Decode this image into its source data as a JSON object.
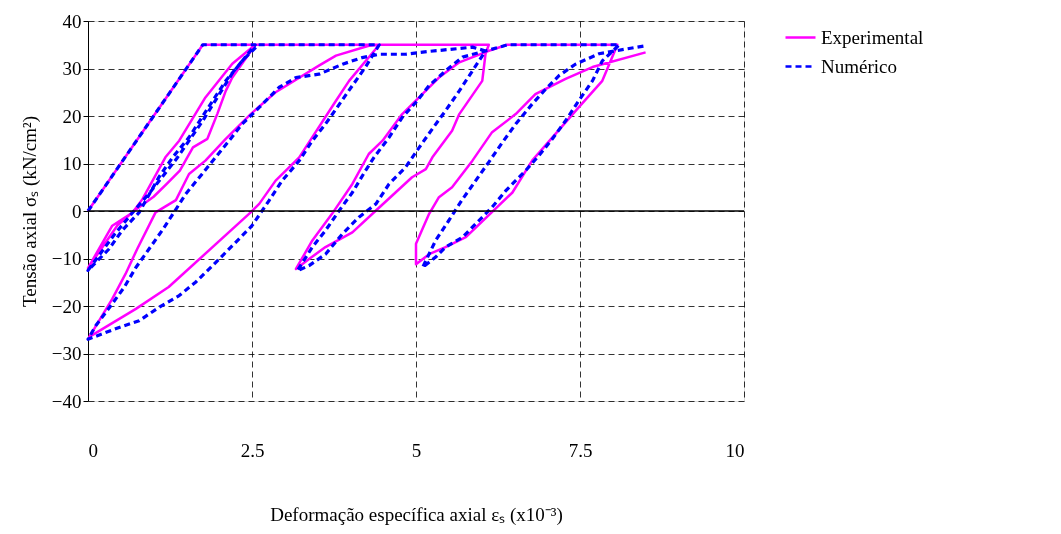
{
  "chart_data": {
    "type": "line",
    "xlabel": "Deformação específica axial εₛ (x10⁻³)",
    "ylabel": "Tensão axial σₛ (kN/cm²)",
    "xlim": [
      0,
      10
    ],
    "xticks": [
      0,
      2.5,
      5,
      7.5,
      10
    ],
    "ylim": [
      -40,
      40
    ],
    "yticks": [
      -40,
      -30,
      -20,
      -10,
      0,
      10,
      20,
      30,
      40
    ],
    "grid": true,
    "legend": "right",
    "ref_lines": [
      {
        "axis": "y",
        "value": 0,
        "color": "#000000",
        "line_style": "solid"
      }
    ],
    "series": [
      {
        "name": "Experimental",
        "color": "#ff00ff",
        "line_style": "solid",
        "x": [
          0,
          1.75,
          2.55,
          2.2,
          2.1,
          1.97,
          1.82,
          1.6,
          1.4,
          1.2,
          1.0,
          0.7,
          0.45,
          0.25,
          0,
          0.37,
          0.68,
          0.83,
          1.18,
          1.39,
          1.79,
          2.2,
          2.55,
          2.7,
          4.44,
          3.98,
          3.78,
          3.22,
          2.86,
          2.61,
          2.48,
          1.23,
          0.73,
          0.02,
          0.37,
          0.57,
          0.75,
          1.03,
          1.34,
          1.54,
          1.79,
          2.1,
          2.48,
          2.86,
          3.52,
          3.78,
          4.28,
          4.44,
          6.11,
          6.06,
          6.01,
          5.66,
          5.55,
          5.25,
          5.15,
          4.94,
          4.39,
          4.03,
          3.62,
          3.37,
          3.17,
          3.42,
          3.72,
          4.03,
          4.28,
          4.49,
          4.79,
          5.35,
          5.66,
          6.11,
          6.39,
          8.07,
          7.84,
          7.48,
          6.77,
          6.47,
          5.76,
          5.45,
          5.2,
          5.0,
          5.0,
          5.2,
          5.35,
          5.55,
          5.86,
          6.16,
          6.52,
          6.82,
          7.28,
          7.69,
          8.5
        ],
        "values": [
          0,
          35,
          35,
          28.1,
          25.3,
          20.4,
          15.2,
          13.4,
          8.5,
          5.7,
          3,
          0,
          -3,
          -7,
          -12,
          -3.1,
          -0.3,
          2.5,
          11.3,
          14.8,
          23.9,
          31,
          35,
          35,
          35,
          27.4,
          23.2,
          11.3,
          6.4,
          1.5,
          -0.3,
          -16,
          -20.6,
          -26.5,
          -18.5,
          -13.3,
          -8,
          -0.3,
          2.3,
          7.8,
          10.6,
          15.2,
          20.4,
          25,
          30.6,
          32.7,
          34.8,
          35,
          35,
          33.1,
          27.4,
          20.4,
          16.9,
          11.3,
          8.8,
          7.1,
          0.1,
          -4.5,
          -7.6,
          -10.1,
          -12.2,
          -6.2,
          -0.6,
          5.7,
          12,
          14.8,
          20.4,
          28.1,
          31.3,
          33.7,
          35,
          35,
          27.4,
          21.8,
          10.6,
          3.9,
          -5.5,
          -7.6,
          -9.1,
          -11.2,
          -6.9,
          -0.6,
          2.9,
          5,
          10.6,
          16.6,
          20.4,
          24.6,
          27.8,
          30.3,
          33.4
        ]
      },
      {
        "name": "Numérico",
        "color": "#0000ff",
        "line_style": "dashed",
        "x": [
          0,
          1.75,
          2.55,
          2.2,
          1.75,
          1.35,
          0.95,
          0.7,
          0.4,
          0,
          0.32,
          0.52,
          0.78,
          1.08,
          1.29,
          1.54,
          1.9,
          2.1,
          2.35,
          2.6,
          2.8,
          4.44,
          4.23,
          4.03,
          3.62,
          3.42,
          3.22,
          2.96,
          2.76,
          2.5,
          1.9,
          1.64,
          1.39,
          1.08,
          0.78,
          0.42,
          0,
          0.12,
          0.35,
          0.55,
          0.73,
          0.93,
          1.13,
          1.31,
          1.49,
          1.74,
          2.15,
          2.35,
          2.61,
          2.91,
          3.17,
          3.52,
          3.88,
          4.18,
          4.44,
          4.84,
          5.2,
          5.5,
          5.86,
          6.06,
          5.86,
          5.66,
          5.45,
          5.25,
          5.05,
          4.84,
          4.59,
          4.39,
          4.13,
          3.88,
          3.62,
          3.37,
          3.19,
          3.42,
          3.62,
          3.83,
          4.03,
          4.23,
          4.36,
          4.59,
          4.79,
          5.0,
          5.2,
          5.45,
          5.71,
          6.06,
          6.4,
          8.1,
          7.84,
          7.69,
          7.48,
          7.28,
          7.08,
          6.87,
          6.67,
          6.37,
          6.16,
          5.96,
          5.71,
          5.45,
          5.3,
          5.1,
          5.3,
          5.5,
          5.71,
          5.91,
          6.11,
          6.32,
          6.52,
          6.77,
          6.98,
          7.18,
          7.43,
          7.79,
          8.2,
          8.5
        ],
        "values": [
          0,
          35,
          35,
          29,
          19,
          11,
          4,
          0,
          -5,
          -12.5,
          -8,
          -4.1,
          -0.3,
          7.1,
          11.3,
          15.5,
          23.2,
          27.4,
          31.6,
          35,
          35,
          35,
          30.3,
          26.4,
          18.3,
          14.8,
          10.6,
          6.4,
          2.2,
          -3.1,
          -11.5,
          -15,
          -17.8,
          -20.3,
          -23.1,
          -24.8,
          -27,
          -24.1,
          -19.9,
          -16.1,
          -11.9,
          -8,
          -4.1,
          -0.3,
          3.6,
          7.8,
          14.8,
          18.3,
          21.8,
          26,
          28.1,
          28.8,
          30.9,
          32.3,
          33,
          33,
          33.6,
          34,
          34.5,
          33.7,
          29.5,
          25.3,
          21.1,
          17.3,
          13.4,
          9.2,
          5.7,
          1.5,
          -1.3,
          -4.8,
          -9.1,
          -11.5,
          -12.6,
          -7.6,
          -4.1,
          0.1,
          3.9,
          8.5,
          11.3,
          15.5,
          19.7,
          22.9,
          26.4,
          29.5,
          32.4,
          33.7,
          35,
          35,
          31.6,
          27.4,
          23.2,
          19,
          15.2,
          11.6,
          8.5,
          4.3,
          0.8,
          -2,
          -5.5,
          -7.6,
          -9.7,
          -11.9,
          -6.2,
          -2,
          2.5,
          6.4,
          10.3,
          14.5,
          18.3,
          22.5,
          25.7,
          28.5,
          30.9,
          33.1,
          34.1,
          34.8
        ]
      }
    ]
  }
}
